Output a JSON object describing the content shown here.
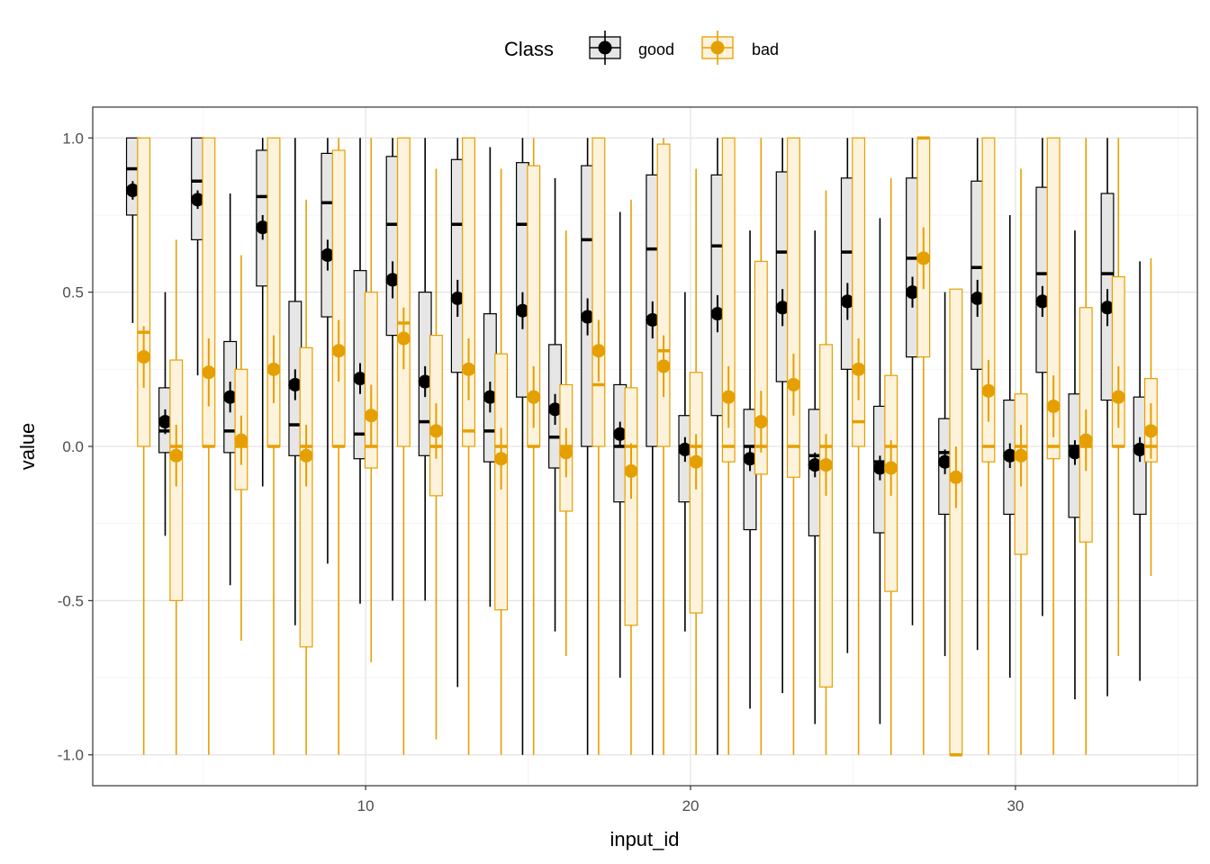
{
  "chart_data": {
    "type": "boxplot",
    "xlabel": "input_id",
    "ylabel": "value",
    "xlim": [
      1.6,
      35.6
    ],
    "ylim": [
      -1.1,
      1.1
    ],
    "x_ticks": [
      10,
      20,
      30
    ],
    "x_tick_labels": [
      "10",
      "20",
      "30"
    ],
    "y_ticks": [
      -1.0,
      -0.5,
      0.0,
      0.5,
      1.0
    ],
    "y_tick_labels": [
      "-1.0",
      "-0.5",
      "0.0",
      "0.5",
      "1.0"
    ],
    "grid": true,
    "legend": {
      "title": "Class",
      "position": "top",
      "entries": [
        "good",
        "bad"
      ]
    },
    "series": [
      {
        "name": "good",
        "color": "#000000",
        "fill": "#e6e6e6",
        "boxes": [
          {
            "x": 3,
            "q1": 0.75,
            "median": 0.9,
            "q3": 1.0,
            "lo": 0.4,
            "hi": 1.0,
            "mean": 0.83,
            "ci": 0.03
          },
          {
            "x": 4,
            "q1": -0.02,
            "median": 0.05,
            "q3": 0.19,
            "lo": -0.29,
            "hi": 0.5,
            "mean": 0.08,
            "ci": 0.04
          },
          {
            "x": 5,
            "q1": 0.67,
            "median": 0.86,
            "q3": 1.0,
            "lo": 0.23,
            "hi": 1.0,
            "mean": 0.8,
            "ci": 0.03
          },
          {
            "x": 6,
            "q1": -0.02,
            "median": 0.05,
            "q3": 0.34,
            "lo": -0.45,
            "hi": 0.82,
            "mean": 0.16,
            "ci": 0.05
          },
          {
            "x": 7,
            "q1": 0.52,
            "median": 0.81,
            "q3": 0.96,
            "lo": -0.13,
            "hi": 1.0,
            "mean": 0.71,
            "ci": 0.04
          },
          {
            "x": 8,
            "q1": -0.03,
            "median": 0.07,
            "q3": 0.47,
            "lo": -0.58,
            "hi": 1.0,
            "mean": 0.2,
            "ci": 0.05
          },
          {
            "x": 9,
            "q1": 0.42,
            "median": 0.79,
            "q3": 0.95,
            "lo": -0.38,
            "hi": 1.0,
            "mean": 0.62,
            "ci": 0.05
          },
          {
            "x": 10,
            "q1": -0.04,
            "median": 0.04,
            "q3": 0.57,
            "lo": -0.51,
            "hi": 1.0,
            "mean": 0.22,
            "ci": 0.05
          },
          {
            "x": 11,
            "q1": 0.36,
            "median": 0.72,
            "q3": 0.94,
            "lo": -0.5,
            "hi": 1.0,
            "mean": 0.54,
            "ci": 0.06
          },
          {
            "x": 12,
            "q1": -0.03,
            "median": 0.08,
            "q3": 0.5,
            "lo": -0.5,
            "hi": 1.0,
            "mean": 0.21,
            "ci": 0.05
          },
          {
            "x": 13,
            "q1": 0.24,
            "median": 0.72,
            "q3": 0.93,
            "lo": -0.78,
            "hi": 1.0,
            "mean": 0.48,
            "ci": 0.06
          },
          {
            "x": 14,
            "q1": -0.05,
            "median": 0.05,
            "q3": 0.43,
            "lo": -0.52,
            "hi": 0.97,
            "mean": 0.16,
            "ci": 0.05
          },
          {
            "x": 15,
            "q1": 0.16,
            "median": 0.72,
            "q3": 0.92,
            "lo": -1.0,
            "hi": 1.0,
            "mean": 0.44,
            "ci": 0.06
          },
          {
            "x": 16,
            "q1": -0.07,
            "median": 0.03,
            "q3": 0.33,
            "lo": -0.6,
            "hi": 0.87,
            "mean": 0.12,
            "ci": 0.05
          },
          {
            "x": 17,
            "q1": 0.0,
            "median": 0.67,
            "q3": 0.91,
            "lo": -1.0,
            "hi": 1.0,
            "mean": 0.42,
            "ci": 0.06
          },
          {
            "x": 18,
            "q1": -0.18,
            "median": 0.0,
            "q3": 0.2,
            "lo": -0.75,
            "hi": 0.76,
            "mean": 0.04,
            "ci": 0.04
          },
          {
            "x": 19,
            "q1": 0.0,
            "median": 0.64,
            "q3": 0.88,
            "lo": -1.0,
            "hi": 1.0,
            "mean": 0.41,
            "ci": 0.06
          },
          {
            "x": 20,
            "q1": -0.18,
            "median": 0.0,
            "q3": 0.1,
            "lo": -0.6,
            "hi": 0.5,
            "mean": -0.01,
            "ci": 0.04
          },
          {
            "x": 21,
            "q1": 0.1,
            "median": 0.65,
            "q3": 0.88,
            "lo": -1.0,
            "hi": 1.0,
            "mean": 0.43,
            "ci": 0.06
          },
          {
            "x": 22,
            "q1": -0.27,
            "median": 0.0,
            "q3": 0.12,
            "lo": -0.85,
            "hi": 0.7,
            "mean": -0.04,
            "ci": 0.04
          },
          {
            "x": 23,
            "q1": 0.21,
            "median": 0.63,
            "q3": 0.89,
            "lo": -0.8,
            "hi": 1.0,
            "mean": 0.45,
            "ci": 0.06
          },
          {
            "x": 24,
            "q1": -0.29,
            "median": -0.03,
            "q3": 0.12,
            "lo": -0.9,
            "hi": 0.7,
            "mean": -0.06,
            "ci": 0.04
          },
          {
            "x": 25,
            "q1": 0.25,
            "median": 0.63,
            "q3": 0.87,
            "lo": -0.67,
            "hi": 1.0,
            "mean": 0.47,
            "ci": 0.06
          },
          {
            "x": 26,
            "q1": -0.28,
            "median": -0.05,
            "q3": 0.13,
            "lo": -0.9,
            "hi": 0.74,
            "mean": -0.07,
            "ci": 0.04
          },
          {
            "x": 27,
            "q1": 0.29,
            "median": 0.61,
            "q3": 0.87,
            "lo": -0.58,
            "hi": 1.0,
            "mean": 0.5,
            "ci": 0.05
          },
          {
            "x": 28,
            "q1": -0.22,
            "median": -0.02,
            "q3": 0.09,
            "lo": -0.68,
            "hi": 0.5,
            "mean": -0.05,
            "ci": 0.04
          },
          {
            "x": 29,
            "q1": 0.25,
            "median": 0.58,
            "q3": 0.86,
            "lo": -0.66,
            "hi": 1.0,
            "mean": 0.48,
            "ci": 0.06
          },
          {
            "x": 30,
            "q1": -0.22,
            "median": -0.03,
            "q3": 0.15,
            "lo": -0.75,
            "hi": 0.75,
            "mean": -0.03,
            "ci": 0.04
          },
          {
            "x": 31,
            "q1": 0.24,
            "median": 0.56,
            "q3": 0.84,
            "lo": -0.55,
            "hi": 1.0,
            "mean": 0.47,
            "ci": 0.05
          },
          {
            "x": 32,
            "q1": -0.23,
            "median": 0.0,
            "q3": 0.17,
            "lo": -0.82,
            "hi": 0.7,
            "mean": -0.02,
            "ci": 0.04
          },
          {
            "x": 33,
            "q1": 0.15,
            "median": 0.56,
            "q3": 0.82,
            "lo": -0.81,
            "hi": 1.0,
            "mean": 0.45,
            "ci": 0.06
          },
          {
            "x": 34,
            "q1": -0.22,
            "median": 0.0,
            "q3": 0.16,
            "lo": -0.76,
            "hi": 0.6,
            "mean": -0.01,
            "ci": 0.04
          }
        ]
      },
      {
        "name": "bad",
        "color": "#e69f00",
        "fill": "#fdf3dc",
        "boxes": [
          {
            "x": 3,
            "q1": 0.0,
            "median": 0.37,
            "q3": 1.0,
            "lo": -1.0,
            "hi": 1.0,
            "mean": 0.29,
            "ci": 0.1
          },
          {
            "x": 4,
            "q1": -0.5,
            "median": 0.0,
            "q3": 0.28,
            "lo": -1.0,
            "hi": 0.67,
            "mean": -0.03,
            "ci": 0.1
          },
          {
            "x": 5,
            "q1": 0.0,
            "median": 0.0,
            "q3": 1.0,
            "lo": -1.0,
            "hi": 1.0,
            "mean": 0.24,
            "ci": 0.11
          },
          {
            "x": 6,
            "q1": -0.14,
            "median": 0.0,
            "q3": 0.25,
            "lo": -0.63,
            "hi": 0.62,
            "mean": 0.02,
            "ci": 0.08
          },
          {
            "x": 7,
            "q1": 0.0,
            "median": 0.0,
            "q3": 1.0,
            "lo": -1.0,
            "hi": 1.0,
            "mean": 0.25,
            "ci": 0.11
          },
          {
            "x": 8,
            "q1": -0.65,
            "median": 0.0,
            "q3": 0.32,
            "lo": -1.0,
            "hi": 0.8,
            "mean": -0.03,
            "ci": 0.1
          },
          {
            "x": 9,
            "q1": 0.0,
            "median": 0.0,
            "q3": 0.96,
            "lo": -1.0,
            "hi": 1.0,
            "mean": 0.31,
            "ci": 0.1
          },
          {
            "x": 10,
            "q1": -0.07,
            "median": 0.0,
            "q3": 0.5,
            "lo": -0.7,
            "hi": 1.0,
            "mean": 0.1,
            "ci": 0.1
          },
          {
            "x": 11,
            "q1": 0.0,
            "median": 0.4,
            "q3": 1.0,
            "lo": -1.0,
            "hi": 1.0,
            "mean": 0.35,
            "ci": 0.1
          },
          {
            "x": 12,
            "q1": -0.16,
            "median": 0.0,
            "q3": 0.36,
            "lo": -0.95,
            "hi": 0.9,
            "mean": 0.05,
            "ci": 0.09
          },
          {
            "x": 13,
            "q1": 0.0,
            "median": 0.05,
            "q3": 1.0,
            "lo": -1.0,
            "hi": 1.0,
            "mean": 0.25,
            "ci": 0.1
          },
          {
            "x": 14,
            "q1": -0.53,
            "median": 0.0,
            "q3": 0.3,
            "lo": -1.0,
            "hi": 0.9,
            "mean": -0.04,
            "ci": 0.1
          },
          {
            "x": 15,
            "q1": 0.0,
            "median": 0.0,
            "q3": 0.91,
            "lo": -1.0,
            "hi": 1.0,
            "mean": 0.16,
            "ci": 0.1
          },
          {
            "x": 16,
            "q1": -0.21,
            "median": 0.0,
            "q3": 0.2,
            "lo": -0.68,
            "hi": 0.7,
            "mean": -0.02,
            "ci": 0.08
          },
          {
            "x": 17,
            "q1": 0.0,
            "median": 0.2,
            "q3": 1.0,
            "lo": -1.0,
            "hi": 1.0,
            "mean": 0.31,
            "ci": 0.1
          },
          {
            "x": 18,
            "q1": -0.58,
            "median": 0.0,
            "q3": 0.19,
            "lo": -1.0,
            "hi": 0.8,
            "mean": -0.08,
            "ci": 0.09
          },
          {
            "x": 19,
            "q1": 0.0,
            "median": 0.31,
            "q3": 0.98,
            "lo": -1.0,
            "hi": 1.0,
            "mean": 0.26,
            "ci": 0.1
          },
          {
            "x": 20,
            "q1": -0.54,
            "median": 0.0,
            "q3": 0.24,
            "lo": -1.0,
            "hi": 0.9,
            "mean": -0.05,
            "ci": 0.09
          },
          {
            "x": 21,
            "q1": -0.05,
            "median": 0.0,
            "q3": 1.0,
            "lo": -1.0,
            "hi": 1.0,
            "mean": 0.16,
            "ci": 0.1
          },
          {
            "x": 22,
            "q1": -0.09,
            "median": 0.0,
            "q3": 0.6,
            "lo": -1.0,
            "hi": 1.0,
            "mean": 0.08,
            "ci": 0.1
          },
          {
            "x": 23,
            "q1": -0.1,
            "median": 0.0,
            "q3": 1.0,
            "lo": -1.0,
            "hi": 1.0,
            "mean": 0.2,
            "ci": 0.1
          },
          {
            "x": 24,
            "q1": -0.78,
            "median": 0.0,
            "q3": 0.33,
            "lo": -1.0,
            "hi": 0.83,
            "mean": -0.06,
            "ci": 0.1
          },
          {
            "x": 25,
            "q1": 0.0,
            "median": 0.08,
            "q3": 1.0,
            "lo": -1.0,
            "hi": 1.0,
            "mean": 0.25,
            "ci": 0.1
          },
          {
            "x": 26,
            "q1": -0.47,
            "median": 0.0,
            "q3": 0.23,
            "lo": -1.0,
            "hi": 0.87,
            "mean": -0.07,
            "ci": 0.09
          },
          {
            "x": 27,
            "q1": 0.29,
            "median": 1.0,
            "q3": 1.0,
            "lo": -1.0,
            "hi": 1.0,
            "mean": 0.61,
            "ci": 0.1
          },
          {
            "x": 28,
            "q1": -1.0,
            "median": -1.0,
            "q3": 0.51,
            "lo": -1.0,
            "hi": 0.51,
            "mean": -0.1,
            "ci": 0.1
          },
          {
            "x": 29,
            "q1": -0.05,
            "median": 0.0,
            "q3": 1.0,
            "lo": -1.0,
            "hi": 1.0,
            "mean": 0.18,
            "ci": 0.1
          },
          {
            "x": 30,
            "q1": -0.35,
            "median": 0.0,
            "q3": 0.17,
            "lo": -1.0,
            "hi": 0.9,
            "mean": -0.03,
            "ci": 0.1
          },
          {
            "x": 31,
            "q1": -0.04,
            "median": 0.0,
            "q3": 1.0,
            "lo": -1.0,
            "hi": 1.0,
            "mean": 0.13,
            "ci": 0.1
          },
          {
            "x": 32,
            "q1": -0.31,
            "median": 0.0,
            "q3": 0.45,
            "lo": -1.0,
            "hi": 1.0,
            "mean": 0.02,
            "ci": 0.1
          },
          {
            "x": 33,
            "q1": 0.0,
            "median": 0.0,
            "q3": 0.55,
            "lo": -0.68,
            "hi": 1.0,
            "mean": 0.16,
            "ci": 0.1
          },
          {
            "x": 34,
            "q1": -0.05,
            "median": 0.0,
            "q3": 0.22,
            "lo": -0.42,
            "hi": 0.61,
            "mean": 0.05,
            "ci": 0.09
          }
        ]
      }
    ]
  }
}
